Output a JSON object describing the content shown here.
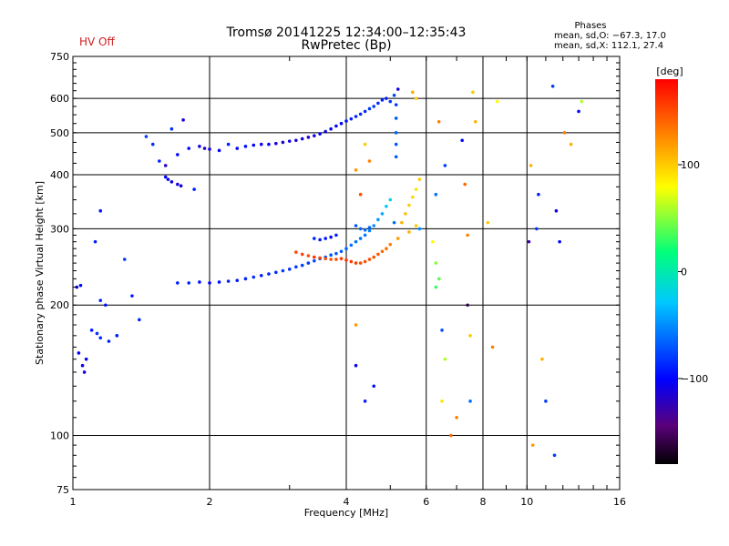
{
  "header": {
    "station_line": "Tromsø 20141225 12:34:00–12:35:43",
    "program_line": "RwPretec (Bp)",
    "hv_status": "HV Off",
    "phases_title": "Phases",
    "phases_o": "mean, sd,O: −67.3, 17.0",
    "phases_x": "mean, sd,X: 112.1, 27.4"
  },
  "chart_data": {
    "type": "scatter",
    "title": "",
    "xlabel": "Frequency [MHz]",
    "ylabel": "Stationary phase Virtual Height [km]",
    "x_scale": "log",
    "y_scale": "log",
    "xlim": [
      1,
      16
    ],
    "ylim": [
      75,
      750
    ],
    "x_ticks": [
      1,
      2,
      4,
      6,
      8,
      10,
      16
    ],
    "x_tick_labels": [
      "1",
      "2",
      "4",
      "6",
      "8",
      "10",
      "16"
    ],
    "y_ticks": [
      75,
      100,
      200,
      300,
      400,
      500,
      600,
      750
    ],
    "y_tick_labels": [
      "75",
      "100",
      "200",
      "300",
      "400",
      "500",
      "600",
      "750"
    ],
    "grid": true,
    "colorbar": {
      "label": "[deg]",
      "ticks": [
        100,
        0,
        -100
      ],
      "tick_labels": [
        "100",
        "0",
        "−100"
      ],
      "range": [
        -180,
        180
      ]
    },
    "series": [
      {
        "points": [
          [
            1.02,
            220,
            -100
          ],
          [
            1.04,
            222,
            -98
          ],
          [
            1.15,
            205,
            -90
          ],
          [
            1.18,
            200,
            -95
          ],
          [
            1.1,
            175,
            -90
          ],
          [
            1.13,
            172,
            -85
          ],
          [
            1.15,
            168,
            -88
          ],
          [
            1.2,
            165,
            -90
          ],
          [
            1.25,
            170,
            -92
          ],
          [
            1.03,
            155,
            -100
          ],
          [
            1.05,
            145,
            -105
          ],
          [
            1.06,
            140,
            -110
          ],
          [
            1.07,
            150,
            -100
          ],
          [
            1.12,
            280,
            -90
          ],
          [
            1.15,
            330,
            -95
          ],
          [
            1.3,
            255,
            -80
          ],
          [
            1.35,
            210,
            -90
          ],
          [
            1.4,
            185,
            -85
          ],
          [
            1.45,
            490,
            -80
          ],
          [
            1.5,
            470,
            -85
          ],
          [
            1.55,
            430,
            -90
          ],
          [
            1.6,
            420,
            -120
          ],
          [
            1.65,
            510,
            -85
          ],
          [
            1.7,
            445,
            -100
          ],
          [
            1.75,
            535,
            -110
          ],
          [
            1.6,
            395,
            -100
          ],
          [
            1.62,
            390,
            -105
          ],
          [
            1.65,
            385,
            -110
          ],
          [
            1.7,
            380,
            -110
          ],
          [
            1.73,
            377,
            -115
          ],
          [
            1.85,
            370,
            -90
          ],
          [
            1.8,
            460,
            -100
          ],
          [
            1.9,
            465,
            -110
          ],
          [
            1.95,
            460,
            -115
          ],
          [
            2.0,
            458,
            -110
          ],
          [
            2.1,
            455,
            -105
          ],
          [
            2.2,
            470,
            -90
          ],
          [
            2.3,
            460,
            -100
          ],
          [
            2.4,
            465,
            -95
          ],
          [
            2.5,
            468,
            -100
          ],
          [
            2.6,
            470,
            -105
          ],
          [
            2.7,
            470,
            -100
          ],
          [
            2.8,
            472,
            -110
          ],
          [
            2.9,
            475,
            -115
          ],
          [
            3.0,
            478,
            -110
          ],
          [
            3.1,
            480,
            -115
          ],
          [
            3.2,
            484,
            -110
          ],
          [
            3.3,
            488,
            -115
          ],
          [
            3.4,
            492,
            -110
          ],
          [
            3.5,
            497,
            -105
          ],
          [
            3.6,
            503,
            -110
          ],
          [
            3.7,
            510,
            -105
          ],
          [
            3.8,
            518,
            -100
          ],
          [
            3.9,
            525,
            -100
          ],
          [
            4.0,
            532,
            -95
          ],
          [
            4.1,
            538,
            -90
          ],
          [
            4.2,
            545,
            -90
          ],
          [
            4.3,
            552,
            -85
          ],
          [
            4.4,
            560,
            -85
          ],
          [
            4.5,
            568,
            -80
          ],
          [
            4.6,
            575,
            -80
          ],
          [
            4.7,
            585,
            -85
          ],
          [
            4.8,
            595,
            -90
          ],
          [
            4.9,
            600,
            -95
          ],
          [
            5.0,
            590,
            -80
          ],
          [
            5.1,
            610,
            -75
          ],
          [
            5.15,
            580,
            -80
          ],
          [
            5.15,
            540,
            -70
          ],
          [
            5.15,
            500,
            -65
          ],
          [
            5.15,
            470,
            -70
          ],
          [
            5.15,
            440,
            -70
          ],
          [
            5.2,
            630,
            -110
          ],
          [
            1.7,
            225,
            -90
          ],
          [
            1.8,
            225,
            -88
          ],
          [
            1.9,
            226,
            -95
          ],
          [
            2.0,
            225,
            -100
          ],
          [
            2.1,
            226,
            -95
          ],
          [
            2.2,
            227,
            -90
          ],
          [
            2.3,
            228,
            -92
          ],
          [
            2.4,
            230,
            -88
          ],
          [
            2.5,
            232,
            -85
          ],
          [
            2.6,
            234,
            -90
          ],
          [
            2.7,
            236,
            -88
          ],
          [
            2.8,
            238,
            -85
          ],
          [
            2.9,
            240,
            -80
          ],
          [
            3.0,
            242,
            -82
          ],
          [
            3.1,
            245,
            -80
          ],
          [
            3.2,
            247,
            -78
          ],
          [
            3.3,
            250,
            -80
          ],
          [
            3.4,
            253,
            -75
          ],
          [
            3.5,
            256,
            -72
          ],
          [
            3.6,
            258,
            -70
          ],
          [
            3.7,
            261,
            -72
          ],
          [
            3.8,
            263,
            -70
          ],
          [
            3.9,
            266,
            -68
          ],
          [
            4.0,
            270,
            -65
          ],
          [
            4.1,
            275,
            -62
          ],
          [
            4.2,
            280,
            -60
          ],
          [
            4.3,
            285,
            -60
          ],
          [
            4.4,
            290,
            -58
          ],
          [
            4.5,
            297,
            -55
          ],
          [
            4.6,
            305,
            -50
          ],
          [
            4.7,
            315,
            -45
          ],
          [
            4.8,
            325,
            -40
          ],
          [
            4.9,
            338,
            -30
          ],
          [
            5.0,
            350,
            -20
          ],
          [
            3.1,
            265,
            150
          ],
          [
            3.2,
            262,
            155
          ],
          [
            3.3,
            260,
            150
          ],
          [
            3.4,
            258,
            160
          ],
          [
            3.5,
            257,
            155
          ],
          [
            3.6,
            256,
            150
          ],
          [
            3.7,
            255,
            148
          ],
          [
            3.8,
            255,
            152
          ],
          [
            3.9,
            256,
            155
          ],
          [
            4.0,
            254,
            160
          ],
          [
            4.1,
            252,
            158
          ],
          [
            4.2,
            250,
            155
          ],
          [
            4.3,
            250,
            150
          ],
          [
            4.4,
            252,
            148
          ],
          [
            4.5,
            255,
            150
          ],
          [
            4.6,
            258,
            148
          ],
          [
            4.7,
            262,
            145
          ],
          [
            4.8,
            266,
            140
          ],
          [
            4.9,
            270,
            135
          ],
          [
            5.0,
            276,
            130
          ],
          [
            5.2,
            285,
            120
          ],
          [
            5.5,
            295,
            110
          ],
          [
            5.7,
            305,
            100
          ],
          [
            5.3,
            310,
            110
          ],
          [
            5.4,
            325,
            105
          ],
          [
            5.5,
            340,
            100
          ],
          [
            5.6,
            355,
            95
          ],
          [
            5.7,
            370,
            90
          ],
          [
            5.8,
            390,
            100
          ],
          [
            3.4,
            285,
            -90
          ],
          [
            3.5,
            283,
            -92
          ],
          [
            3.6,
            285,
            -95
          ],
          [
            3.7,
            287,
            -95
          ],
          [
            3.8,
            290,
            -90
          ],
          [
            4.2,
            305,
            -70
          ],
          [
            4.3,
            300,
            -65
          ],
          [
            4.4,
            298,
            -60
          ],
          [
            4.5,
            302,
            -65
          ],
          [
            4.2,
            410,
            120
          ],
          [
            4.4,
            470,
            100
          ],
          [
            4.5,
            430,
            130
          ],
          [
            4.3,
            360,
            150
          ],
          [
            4.2,
            180,
            120
          ],
          [
            4.2,
            145,
            -100
          ],
          [
            4.4,
            120,
            -90
          ],
          [
            4.6,
            130,
            -95
          ],
          [
            5.1,
            310,
            -60
          ],
          [
            5.8,
            300,
            -50
          ],
          [
            6.2,
            280,
            80
          ],
          [
            6.3,
            250,
            50
          ],
          [
            6.4,
            230,
            40
          ],
          [
            6.3,
            220,
            30
          ],
          [
            6.5,
            175,
            -70
          ],
          [
            6.6,
            150,
            60
          ],
          [
            6.5,
            120,
            90
          ],
          [
            6.8,
            100,
            140
          ],
          [
            7.0,
            110,
            130
          ],
          [
            7.3,
            380,
            140
          ],
          [
            7.4,
            200,
            -160
          ],
          [
            7.5,
            170,
            100
          ],
          [
            7.5,
            120,
            -60
          ],
          [
            7.6,
            620,
            100
          ],
          [
            7.7,
            530,
            110
          ],
          [
            7.4,
            290,
            130
          ],
          [
            7.2,
            480,
            -100
          ],
          [
            5.6,
            620,
            110
          ],
          [
            5.7,
            600,
            100
          ],
          [
            6.4,
            530,
            130
          ],
          [
            6.3,
            360,
            -60
          ],
          [
            6.6,
            420,
            -80
          ],
          [
            8.2,
            310,
            100
          ],
          [
            8.4,
            160,
            130
          ],
          [
            8.6,
            590,
            80
          ],
          [
            10.1,
            280,
            -130
          ],
          [
            10.2,
            420,
            110
          ],
          [
            10.3,
            95,
            120
          ],
          [
            10.6,
            360,
            -90
          ],
          [
            10.5,
            300,
            -80
          ],
          [
            11.0,
            120,
            -80
          ],
          [
            11.4,
            640,
            -80
          ],
          [
            11.5,
            90,
            -80
          ],
          [
            11.8,
            280,
            -100
          ],
          [
            12.1,
            500,
            130
          ],
          [
            12.5,
            470,
            110
          ],
          [
            13.0,
            560,
            -100
          ],
          [
            13.2,
            590,
            60
          ],
          [
            10.8,
            150,
            110
          ],
          [
            11.6,
            330,
            -110
          ]
        ]
      }
    ]
  }
}
